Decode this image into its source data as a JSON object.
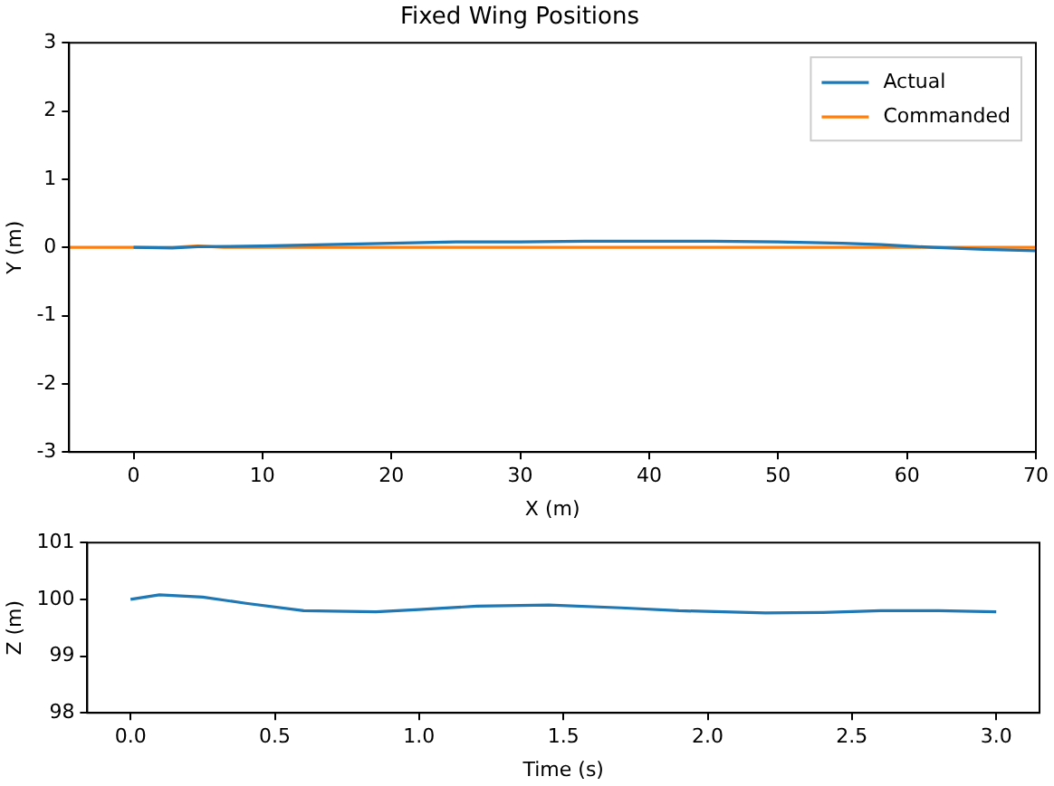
{
  "chart_data": [
    {
      "type": "line",
      "title": "Fixed Wing Positions",
      "xlabel": "X (m)",
      "ylabel": "Y (m)",
      "xlim": [
        -5,
        70
      ],
      "xticks": [
        0,
        10,
        20,
        30,
        40,
        50,
        60,
        70
      ],
      "ylim": [
        -3,
        3
      ],
      "yticks": [
        -3,
        -2,
        -1,
        0,
        1,
        2,
        3
      ],
      "legend": "top right",
      "grid": false,
      "series": [
        {
          "name": "Actual",
          "color": "#1f77b4",
          "x": [
            0,
            3,
            5,
            10,
            15,
            20,
            25,
            30,
            35,
            40,
            45,
            50,
            55,
            58,
            62,
            66,
            70
          ],
          "values": [
            0,
            -0.01,
            0.01,
            0.02,
            0.04,
            0.06,
            0.08,
            0.08,
            0.09,
            0.09,
            0.09,
            0.08,
            0.06,
            0.04,
            0,
            -0.03,
            -0.05
          ]
        },
        {
          "name": "Commanded",
          "color": "#ff7f0e",
          "x": [
            -5,
            3,
            5,
            7,
            70
          ],
          "values": [
            0,
            0,
            0.02,
            0,
            0
          ]
        }
      ]
    },
    {
      "type": "line",
      "xlabel": "Time (s)",
      "ylabel": "Z (m)",
      "xlim": [
        -0.15,
        3.15
      ],
      "xticks": [
        {
          "value": 0,
          "label": "0.0"
        },
        0.5,
        {
          "value": 1,
          "label": "1.0"
        },
        1.5,
        {
          "value": 2,
          "label": "2.0"
        },
        2.5,
        {
          "value": 3,
          "label": "3.0"
        }
      ],
      "ylim": [
        98,
        101
      ],
      "yticks": [
        98,
        99,
        100,
        101
      ],
      "legend": false,
      "grid": false,
      "series": [
        {
          "color": "#1f77b4",
          "x": [
            0,
            0.1,
            0.25,
            0.4,
            0.6,
            0.85,
            1.0,
            1.2,
            1.45,
            1.7,
            1.9,
            2.2,
            2.4,
            2.6,
            2.8,
            3.0
          ],
          "values": [
            100.0,
            100.08,
            100.04,
            99.93,
            99.8,
            99.78,
            99.82,
            99.88,
            99.9,
            99.85,
            99.8,
            99.76,
            99.77,
            99.8,
            99.8,
            99.78
          ]
        }
      ]
    }
  ]
}
